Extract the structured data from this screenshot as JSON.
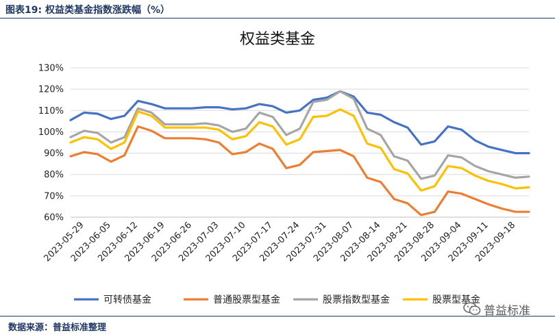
{
  "header": {
    "figure_title": "图表19:  权益类基金指数涨跌幅（%）"
  },
  "footer": {
    "source": "数据来源：普益标准整理"
  },
  "watermark": {
    "text": "普益标准"
  },
  "chart_data": {
    "type": "line",
    "title": "权益类基金",
    "xlabel": "",
    "ylabel": "",
    "ylim": [
      60,
      130
    ],
    "yticks": [
      "60%",
      "70%",
      "80%",
      "90%",
      "100%",
      "110%",
      "120%",
      "130%"
    ],
    "grid": true,
    "legend_position": "bottom",
    "x": [
      "2023-05-26",
      "2023-05-29",
      "2023-06-02",
      "2023-06-05",
      "2023-06-09",
      "2023-06-12",
      "2023-06-16",
      "2023-06-19",
      "2023-06-23",
      "2023-06-26",
      "2023-06-30",
      "2023-07-03",
      "2023-07-07",
      "2023-07-10",
      "2023-07-14",
      "2023-07-17",
      "2023-07-21",
      "2023-07-24",
      "2023-07-28",
      "2023-07-31",
      "2023-08-04",
      "2023-08-07",
      "2023-08-11",
      "2023-08-14",
      "2023-08-18",
      "2023-08-21",
      "2023-08-25",
      "2023-08-28",
      "2023-09-01",
      "2023-09-04",
      "2023-09-08",
      "2023-09-11",
      "2023-09-15",
      "2023-09-18",
      "2023-09-22"
    ],
    "xtick_labels": [
      "2023-05-29",
      "2023-06-05",
      "2023-06-12",
      "2023-06-19",
      "2023-06-26",
      "2023-07-03",
      "2023-07-10",
      "2023-07-17",
      "2023-07-24",
      "2023-07-31",
      "2023-08-07",
      "2023-08-14",
      "2023-08-21",
      "2023-08-28",
      "2023-09-04",
      "2023-09-11",
      "2023-09-18"
    ],
    "series": [
      {
        "name": "可转债基金",
        "color": "#4472c4",
        "values": [
          105.5,
          109,
          108.5,
          106,
          107.5,
          114.5,
          113,
          111,
          111,
          111,
          111.5,
          111.5,
          110.5,
          111,
          113,
          112,
          109,
          110,
          115,
          116,
          119,
          116.5,
          109,
          108,
          104.5,
          102,
          94,
          95.5,
          102.5,
          101,
          96,
          93,
          91.5,
          90,
          90
        ]
      },
      {
        "name": "普通股票型基金",
        "color": "#ed7d31",
        "values": [
          88.5,
          90.5,
          89.5,
          86,
          89,
          102.5,
          100.5,
          97,
          97,
          97,
          96.5,
          95,
          89.5,
          90.5,
          94.5,
          92,
          83,
          84.5,
          90.5,
          91,
          91.5,
          88.5,
          78.5,
          76.5,
          68.5,
          66.5,
          61,
          62.5,
          72,
          71,
          68.5,
          66,
          64,
          62.5,
          62.5
        ]
      },
      {
        "name": "股票指数型基金",
        "color": "#a5a5a5",
        "values": [
          97.5,
          100.5,
          99.5,
          95,
          97.5,
          111,
          109,
          103.5,
          103.5,
          103.5,
          104,
          103,
          100,
          101.5,
          109,
          107,
          98.5,
          101.5,
          114,
          115,
          119,
          115.5,
          101.5,
          98.5,
          88.5,
          86.5,
          78,
          79.5,
          89,
          88,
          84,
          81.5,
          80,
          78.5,
          79
        ]
      },
      {
        "name": "股票型基金",
        "color": "#ffc000",
        "values": [
          95,
          97.5,
          96.5,
          92,
          95,
          109.5,
          107.5,
          102,
          102,
          102,
          102,
          101,
          96.5,
          98,
          104.5,
          102.5,
          94,
          96.5,
          107,
          107.5,
          110.5,
          107.5,
          94.5,
          92.5,
          82.5,
          80.5,
          72.5,
          74.5,
          84,
          83,
          79.5,
          77,
          75.5,
          73.5,
          74
        ]
      }
    ]
  }
}
